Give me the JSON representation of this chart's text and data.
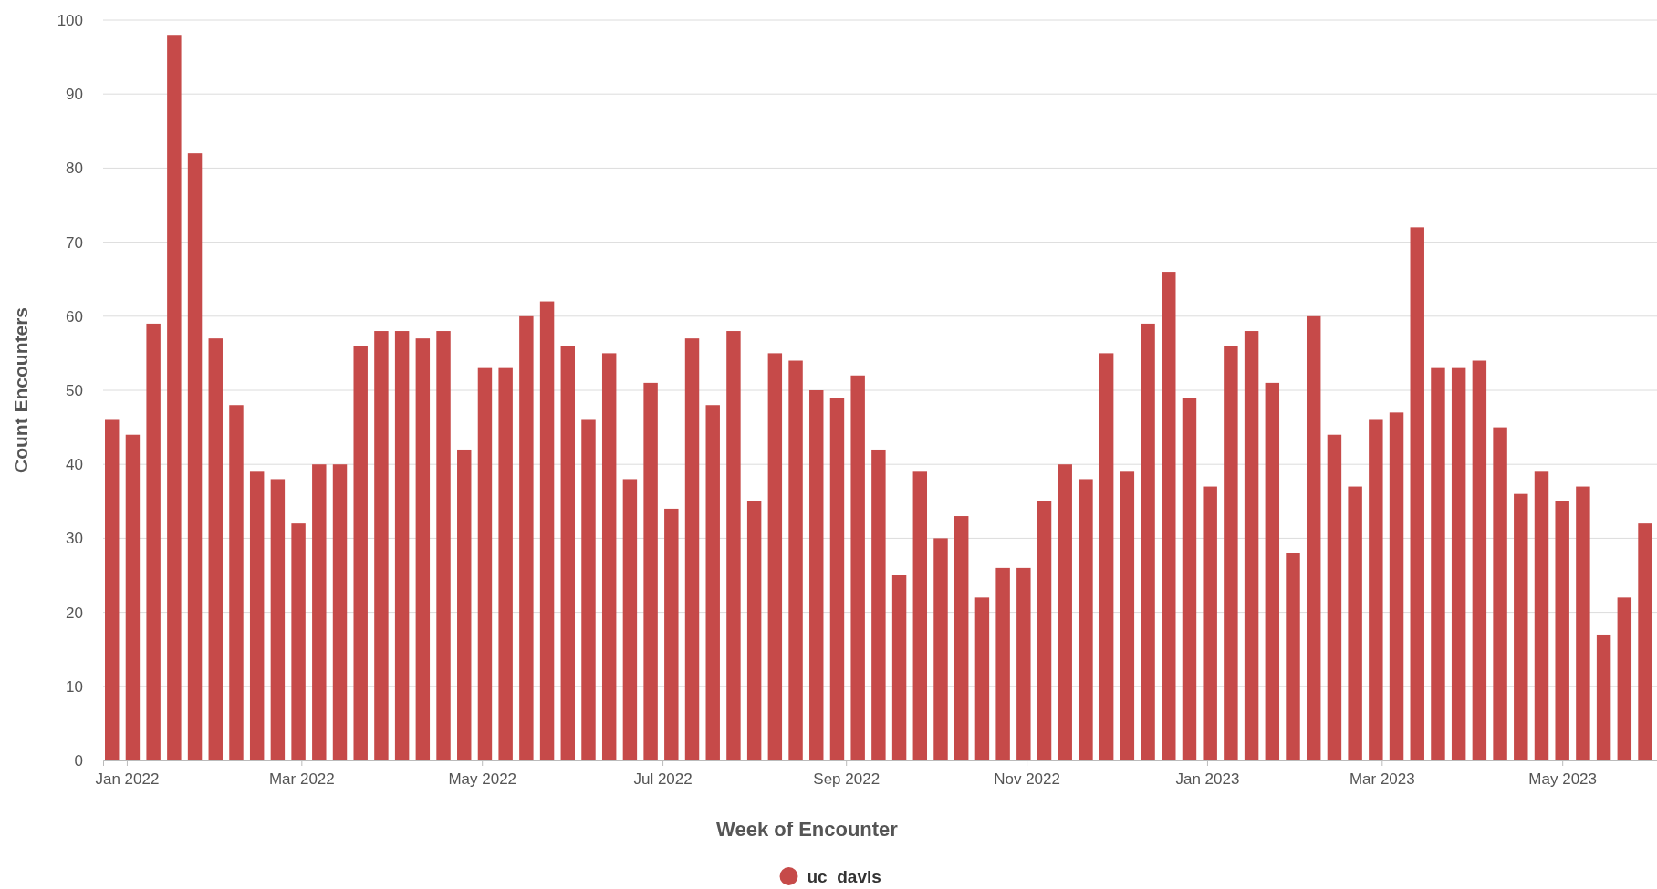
{
  "chart_data": {
    "type": "bar",
    "xlabel": "Week of Encounter",
    "ylabel": "Count Encounters",
    "x": [
      "2021-12-27",
      "2022-01-03",
      "2022-01-10",
      "2022-01-17",
      "2022-01-24",
      "2022-01-31",
      "2022-02-07",
      "2022-02-14",
      "2022-02-21",
      "2022-02-28",
      "2022-03-07",
      "2022-03-14",
      "2022-03-21",
      "2022-03-28",
      "2022-04-04",
      "2022-04-11",
      "2022-04-18",
      "2022-04-25",
      "2022-05-02",
      "2022-05-09",
      "2022-05-16",
      "2022-05-23",
      "2022-05-30",
      "2022-06-06",
      "2022-06-13",
      "2022-06-20",
      "2022-06-27",
      "2022-07-04",
      "2022-07-11",
      "2022-07-18",
      "2022-07-25",
      "2022-08-01",
      "2022-08-08",
      "2022-08-15",
      "2022-08-22",
      "2022-08-29",
      "2022-09-05",
      "2022-09-12",
      "2022-09-19",
      "2022-09-26",
      "2022-10-03",
      "2022-10-10",
      "2022-10-17",
      "2022-10-24",
      "2022-10-31",
      "2022-11-07",
      "2022-11-14",
      "2022-11-21",
      "2022-11-28",
      "2022-12-05",
      "2022-12-12",
      "2022-12-19",
      "2022-12-26",
      "2023-01-02",
      "2023-01-09",
      "2023-01-16",
      "2023-01-23",
      "2023-01-30",
      "2023-02-06",
      "2023-02-13",
      "2023-02-20",
      "2023-02-27",
      "2023-03-06",
      "2023-03-13",
      "2023-03-20",
      "2023-03-27",
      "2023-04-03",
      "2023-04-10",
      "2023-04-17",
      "2023-04-24",
      "2023-05-01",
      "2023-05-08",
      "2023-05-15",
      "2023-05-22",
      "2023-05-29"
    ],
    "series": [
      {
        "name": "uc_davis",
        "color": "#c64a49",
        "values": [
          46,
          44,
          59,
          98,
          82,
          57,
          48,
          39,
          38,
          32,
          40,
          40,
          56,
          58,
          58,
          57,
          58,
          42,
          53,
          53,
          60,
          62,
          56,
          46,
          55,
          38,
          51,
          34,
          57,
          48,
          58,
          35,
          55,
          54,
          50,
          49,
          52,
          42,
          25,
          39,
          30,
          33,
          22,
          26,
          26,
          35,
          40,
          38,
          55,
          39,
          59,
          66,
          49,
          37,
          56,
          58,
          51,
          28,
          60,
          44,
          37,
          46,
          47,
          72,
          53,
          53,
          54,
          45,
          36,
          39,
          35,
          37,
          17,
          22,
          32
        ]
      }
    ],
    "xlim": [
      "2021-12-24",
      "2023-06-02"
    ],
    "xticks": [
      {
        "value": "2022-01-01",
        "label": "Jan 2022"
      },
      {
        "value": "2022-03-01",
        "label": "Mar 2022"
      },
      {
        "value": "2022-05-01",
        "label": "May 2022"
      },
      {
        "value": "2022-07-01",
        "label": "Jul 2022"
      },
      {
        "value": "2022-09-01",
        "label": "Sep 2022"
      },
      {
        "value": "2022-11-01",
        "label": "Nov 2022"
      },
      {
        "value": "2023-01-01",
        "label": "Jan 2023"
      },
      {
        "value": "2023-03-01",
        "label": "Mar 2023"
      },
      {
        "value": "2023-05-01",
        "label": "May 2023"
      }
    ],
    "ylim": [
      0,
      100
    ],
    "yticks": [
      0,
      10,
      20,
      30,
      40,
      50,
      60,
      70,
      80,
      90,
      100
    ],
    "grid": "y",
    "legend": "bottom",
    "marker": "circle"
  }
}
